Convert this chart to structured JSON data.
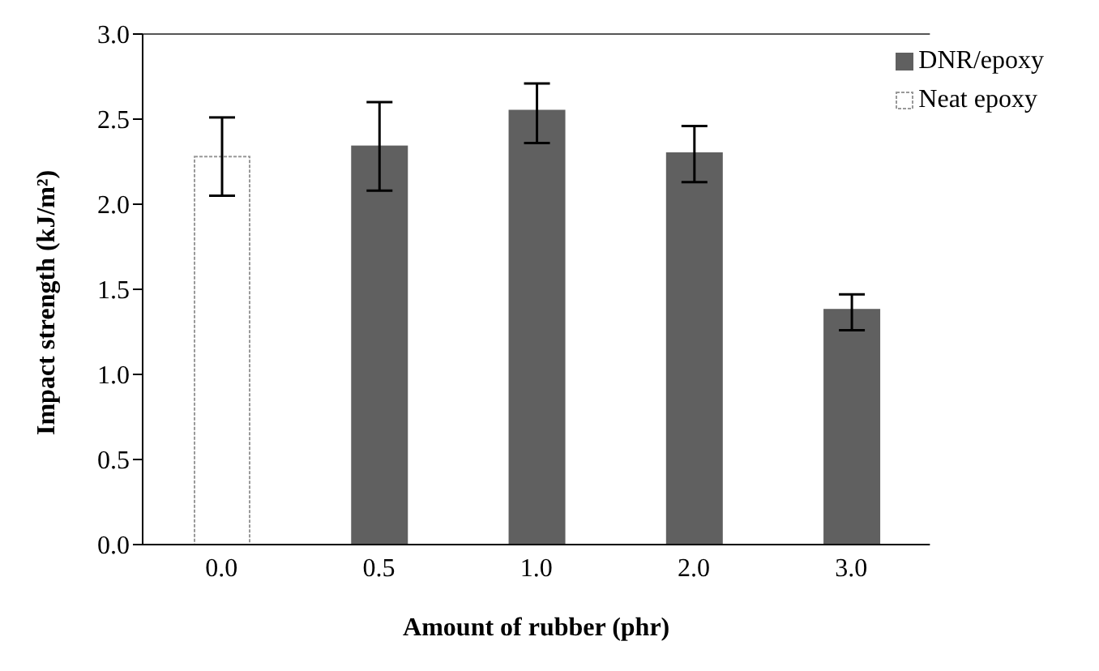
{
  "chart_data": {
    "type": "bar",
    "stacked": true,
    "xlabel": "Amount of rubber (phr)",
    "ylabel": "Impact strength (kJ/m²)",
    "categories": [
      "0.0",
      "0.5",
      "1.0",
      "2.0",
      "3.0"
    ],
    "series": [
      {
        "name": "DNR/epoxy",
        "color": "#606060",
        "values": [
          null,
          2.34,
          2.55,
          2.3,
          1.38
        ],
        "errors": [
          null,
          [
            2.08,
            2.6
          ],
          [
            2.36,
            2.71
          ],
          [
            2.13,
            2.46
          ],
          [
            1.26,
            1.47
          ]
        ]
      },
      {
        "name": "Neat epoxy",
        "color": "#ffffff",
        "values": [
          2.28,
          null,
          null,
          null,
          null
        ],
        "errors": [
          [
            2.05,
            2.51
          ],
          null,
          null,
          null,
          null
        ]
      }
    ],
    "ylim": [
      0,
      3
    ],
    "yticks": [
      {
        "value": 0,
        "label": "0.0"
      },
      {
        "value": 0.5,
        "label": "0.5"
      },
      {
        "value": 1,
        "label": "1.0"
      },
      {
        "value": 1.5,
        "label": "1.5"
      },
      {
        "value": 2,
        "label": "2.0"
      },
      {
        "value": 2.5,
        "label": "2.5"
      },
      {
        "value": 3,
        "label": "3.0"
      }
    ],
    "grid": false,
    "legend": "top right"
  }
}
